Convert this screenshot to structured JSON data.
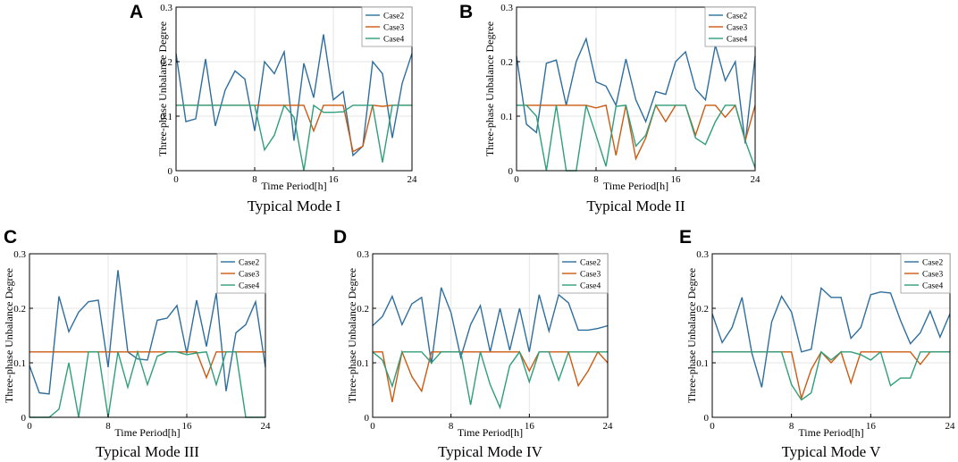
{
  "figure": {
    "type": "multi-panel line chart"
  },
  "chart_data": [
    {
      "panel": "A",
      "subtitle": "Typical Mode I",
      "type": "line",
      "xlabel": "Time Period[h]",
      "ylabel": "Three-phase Unbalance Degree",
      "xlim": [
        0,
        24
      ],
      "ylim": [
        0,
        0.3
      ],
      "xticks": [
        0,
        8,
        16,
        24
      ],
      "yticks": [
        0,
        0.1,
        0.2,
        0.3
      ],
      "x": [
        0,
        1,
        2,
        3,
        4,
        5,
        6,
        7,
        8,
        9,
        10,
        11,
        12,
        13,
        14,
        15,
        16,
        17,
        18,
        19,
        20,
        21,
        22,
        23,
        24
      ],
      "series": [
        {
          "name": "Case2",
          "values": [
            0.215,
            0.09,
            0.095,
            0.205,
            0.082,
            0.148,
            0.183,
            0.168,
            0.073,
            0.2,
            0.178,
            0.218,
            0.055,
            0.197,
            0.134,
            0.25,
            0.13,
            0.145,
            0.028,
            0.045,
            0.2,
            0.178,
            0.06,
            0.16,
            0.215
          ]
        },
        {
          "name": "Case3",
          "values": [
            0.12,
            0.12,
            0.12,
            0.12,
            0.12,
            0.12,
            0.12,
            0.12,
            0.12,
            0.12,
            0.12,
            0.12,
            0.12,
            0.12,
            0.073,
            0.12,
            0.12,
            0.12,
            0.035,
            0.045,
            0.12,
            0.118,
            0.12,
            0.12,
            0.12
          ]
        },
        {
          "name": "Case4",
          "values": [
            0.12,
            0.12,
            0.12,
            0.12,
            0.12,
            0.12,
            0.12,
            0.12,
            0.12,
            0.038,
            0.065,
            0.12,
            0.098,
            0.0,
            0.12,
            0.107,
            0.107,
            0.108,
            0.12,
            0.12,
            0.12,
            0.015,
            0.12,
            0.12,
            0.12
          ]
        }
      ]
    },
    {
      "panel": "B",
      "subtitle": "Typical Mode II",
      "type": "line",
      "xlabel": "Time Period[h]",
      "ylabel": "Three-phase Unbalance Degree",
      "xlim": [
        0,
        24
      ],
      "ylim": [
        0,
        0.3
      ],
      "xticks": [
        0,
        8,
        16,
        24
      ],
      "yticks": [
        0,
        0.1,
        0.2,
        0.3
      ],
      "x": [
        0,
        1,
        2,
        3,
        4,
        5,
        6,
        7,
        8,
        9,
        10,
        11,
        12,
        13,
        14,
        15,
        16,
        17,
        18,
        19,
        20,
        21,
        22,
        23,
        24
      ],
      "series": [
        {
          "name": "Case2",
          "values": [
            0.21,
            0.085,
            0.07,
            0.197,
            0.203,
            0.12,
            0.2,
            0.242,
            0.163,
            0.155,
            0.12,
            0.205,
            0.13,
            0.09,
            0.145,
            0.14,
            0.2,
            0.218,
            0.15,
            0.13,
            0.23,
            0.165,
            0.2,
            0.05,
            0.21
          ]
        },
        {
          "name": "Case3",
          "values": [
            0.12,
            0.12,
            0.12,
            0.12,
            0.12,
            0.12,
            0.12,
            0.12,
            0.115,
            0.12,
            0.028,
            0.12,
            0.022,
            0.06,
            0.12,
            0.09,
            0.12,
            0.12,
            0.065,
            0.12,
            0.12,
            0.098,
            0.12,
            0.055,
            0.12
          ]
        },
        {
          "name": "Case4",
          "values": [
            0.12,
            0.12,
            0.1,
            0.0,
            0.12,
            0.0,
            0.0,
            0.12,
            0.065,
            0.008,
            0.118,
            0.12,
            0.045,
            0.065,
            0.12,
            0.12,
            0.12,
            0.12,
            0.06,
            0.048,
            0.09,
            0.12,
            0.12,
            0.055,
            0.005
          ]
        }
      ]
    },
    {
      "panel": "C",
      "subtitle": "Typical Mode III",
      "type": "line",
      "xlabel": "Time Period[h]",
      "ylabel": "Three-phase Unbalance Degree",
      "xlim": [
        0,
        24
      ],
      "ylim": [
        0,
        0.3
      ],
      "xticks": [
        0,
        8,
        16,
        24
      ],
      "yticks": [
        0,
        0.1,
        0.2,
        0.3
      ],
      "x": [
        0,
        1,
        2,
        3,
        4,
        5,
        6,
        7,
        8,
        9,
        10,
        11,
        12,
        13,
        14,
        15,
        16,
        17,
        18,
        19,
        20,
        21,
        22,
        23,
        24
      ],
      "series": [
        {
          "name": "Case2",
          "values": [
            0.095,
            0.045,
            0.043,
            0.222,
            0.157,
            0.193,
            0.212,
            0.215,
            0.092,
            0.27,
            0.12,
            0.107,
            0.105,
            0.178,
            0.182,
            0.205,
            0.117,
            0.215,
            0.13,
            0.228,
            0.048,
            0.155,
            0.17,
            0.212,
            0.092
          ]
        },
        {
          "name": "Case3",
          "values": [
            0.12,
            0.12,
            0.12,
            0.12,
            0.12,
            0.12,
            0.12,
            0.12,
            0.12,
            0.12,
            0.12,
            0.12,
            0.12,
            0.12,
            0.12,
            0.12,
            0.12,
            0.12,
            0.073,
            0.12,
            0.12,
            0.12,
            0.12,
            0.12,
            0.12
          ]
        },
        {
          "name": "Case4",
          "values": [
            0.0,
            0.0,
            0.0,
            0.015,
            0.1,
            0.0,
            0.12,
            0.12,
            0.0,
            0.12,
            0.055,
            0.12,
            0.06,
            0.112,
            0.12,
            0.12,
            0.115,
            0.118,
            0.12,
            0.06,
            0.12,
            0.12,
            0.0,
            0.0,
            0.0
          ]
        }
      ]
    },
    {
      "panel": "D",
      "subtitle": "Typical Mode IV",
      "type": "line",
      "xlabel": "Time Period[h]",
      "ylabel": "Three-phase Unbalance Degree",
      "xlim": [
        0,
        24
      ],
      "ylim": [
        0,
        0.3
      ],
      "xticks": [
        0,
        8,
        16,
        24
      ],
      "yticks": [
        0,
        0.1,
        0.2,
        0.3
      ],
      "x": [
        0,
        1,
        2,
        3,
        4,
        5,
        6,
        7,
        8,
        9,
        10,
        11,
        12,
        13,
        14,
        15,
        16,
        17,
        18,
        19,
        20,
        21,
        22,
        23,
        24
      ],
      "series": [
        {
          "name": "Case2",
          "values": [
            0.168,
            0.185,
            0.222,
            0.17,
            0.208,
            0.22,
            0.098,
            0.238,
            0.192,
            0.11,
            0.17,
            0.205,
            0.12,
            0.2,
            0.123,
            0.2,
            0.12,
            0.225,
            0.158,
            0.225,
            0.21,
            0.16,
            0.16,
            0.163,
            0.168
          ]
        },
        {
          "name": "Case3",
          "values": [
            0.12,
            0.12,
            0.028,
            0.12,
            0.075,
            0.048,
            0.12,
            0.12,
            0.12,
            0.12,
            0.12,
            0.12,
            0.12,
            0.12,
            0.12,
            0.12,
            0.085,
            0.12,
            0.12,
            0.12,
            0.12,
            0.058,
            0.085,
            0.12,
            0.1
          ]
        },
        {
          "name": "Case4",
          "values": [
            0.12,
            0.105,
            0.057,
            0.12,
            0.12,
            0.12,
            0.1,
            0.12,
            0.12,
            0.12,
            0.023,
            0.12,
            0.06,
            0.018,
            0.095,
            0.12,
            0.065,
            0.12,
            0.12,
            0.068,
            0.12,
            0.12,
            0.12,
            0.12,
            0.12
          ]
        }
      ]
    },
    {
      "panel": "E",
      "subtitle": "Typical Mode V",
      "type": "line",
      "xlabel": "Time Period[h]",
      "ylabel": "Three-phase Unbalance Degree",
      "xlim": [
        0,
        24
      ],
      "ylim": [
        0,
        0.3
      ],
      "xticks": [
        0,
        8,
        16,
        24
      ],
      "yticks": [
        0,
        0.1,
        0.2,
        0.3
      ],
      "x": [
        0,
        1,
        2,
        3,
        4,
        5,
        6,
        7,
        8,
        9,
        10,
        11,
        12,
        13,
        14,
        15,
        16,
        17,
        18,
        19,
        20,
        21,
        22,
        23,
        24
      ],
      "series": [
        {
          "name": "Case2",
          "values": [
            0.19,
            0.137,
            0.165,
            0.22,
            0.118,
            0.055,
            0.175,
            0.222,
            0.193,
            0.12,
            0.125,
            0.237,
            0.22,
            0.22,
            0.145,
            0.165,
            0.225,
            0.23,
            0.228,
            0.178,
            0.135,
            0.155,
            0.195,
            0.147,
            0.19
          ]
        },
        {
          "name": "Case3",
          "values": [
            0.12,
            0.12,
            0.12,
            0.12,
            0.12,
            0.12,
            0.12,
            0.12,
            0.12,
            0.035,
            0.088,
            0.12,
            0.1,
            0.12,
            0.063,
            0.12,
            0.12,
            0.12,
            0.12,
            0.12,
            0.12,
            0.097,
            0.12,
            0.12,
            0.12
          ]
        },
        {
          "name": "Case4",
          "values": [
            0.12,
            0.12,
            0.12,
            0.12,
            0.12,
            0.12,
            0.12,
            0.12,
            0.06,
            0.032,
            0.045,
            0.12,
            0.105,
            0.12,
            0.12,
            0.115,
            0.105,
            0.12,
            0.058,
            0.072,
            0.072,
            0.12,
            0.12,
            0.12,
            0.12
          ]
        }
      ]
    }
  ],
  "colors": {
    "Case2": "#2e6e9e",
    "Case3": "#cc5a11",
    "Case4": "#2f9e7a",
    "axis": "#000000",
    "grid": "#e6e6e6"
  }
}
